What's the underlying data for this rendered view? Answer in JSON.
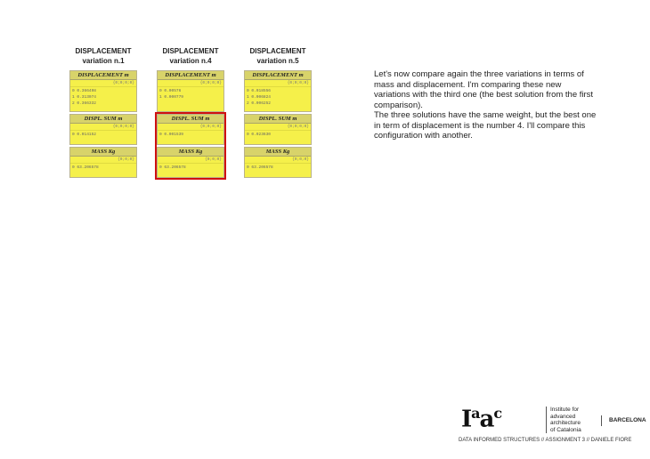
{
  "variations": [
    {
      "title_line1": "DISPLACEMENT",
      "title_line2": "variation n.1",
      "displacement": {
        "header": "DISPLACEMENT m",
        "path": "{0;0;0;0}",
        "values": [
          "0 0.366498",
          "1 0.313074",
          "2 0.366332"
        ]
      },
      "sum": {
        "header": "DISPL. SUM m",
        "path": "{0;0;0;0}",
        "values": [
          "0 0.014152"
        ]
      },
      "mass": {
        "header": "MASS Kg",
        "path": "{0;0;0}",
        "values": [
          "0 63.206578"
        ]
      },
      "highlighted": false
    },
    {
      "title_line1": "DISPLACEMENT",
      "title_line2": "variation n.4",
      "displacement": {
        "header": "DISPLACEMENT m",
        "path": "{0;0;0;0}",
        "values": [
          "0 0.00576",
          "1 0.000779"
        ]
      },
      "sum": {
        "header": "DISPL. SUM m",
        "path": "{0;0;0;0}",
        "values": [
          "0 0.001539"
        ]
      },
      "mass": {
        "header": "MASS Kg",
        "path": "{0;0;0}",
        "values": [
          "0 63.206578"
        ]
      },
      "highlighted": true
    },
    {
      "title_line1": "DISPLACEMENT",
      "title_line2": "variation n.5",
      "displacement": {
        "header": "DISPLACEMENT m",
        "path": "{0;0;0;0}",
        "values": [
          "0 0.018556",
          "1 0.006824",
          "2 0.006252"
        ]
      },
      "sum": {
        "header": "DISPL. SUM m",
        "path": "{0;0;0;0}",
        "values": [
          "0 0.023630"
        ]
      },
      "mass": {
        "header": "MASS Kg",
        "path": "{0;0;0}",
        "values": [
          "0 63.206578"
        ]
      },
      "highlighted": false
    }
  ],
  "highlight_color": "#d01010",
  "description": "Let's now compare again the three variations in terms of mass and displacement. I'm comparing these new variations with the third one (the best solution from the first comparison).\nThe three solutions have the same weight, but the best one in term of displacement is the number 4. I'll compare this configuration with another.",
  "logo": {
    "mark": "Iaac",
    "institute": [
      "Institute for",
      "advanced",
      "architecture",
      "of Catalonia"
    ],
    "city": "BARCELONA"
  },
  "footer": "DATA INFORMED STRUCTURES  //  ASSIGNMENT 3 //  DANIELE FIORE"
}
